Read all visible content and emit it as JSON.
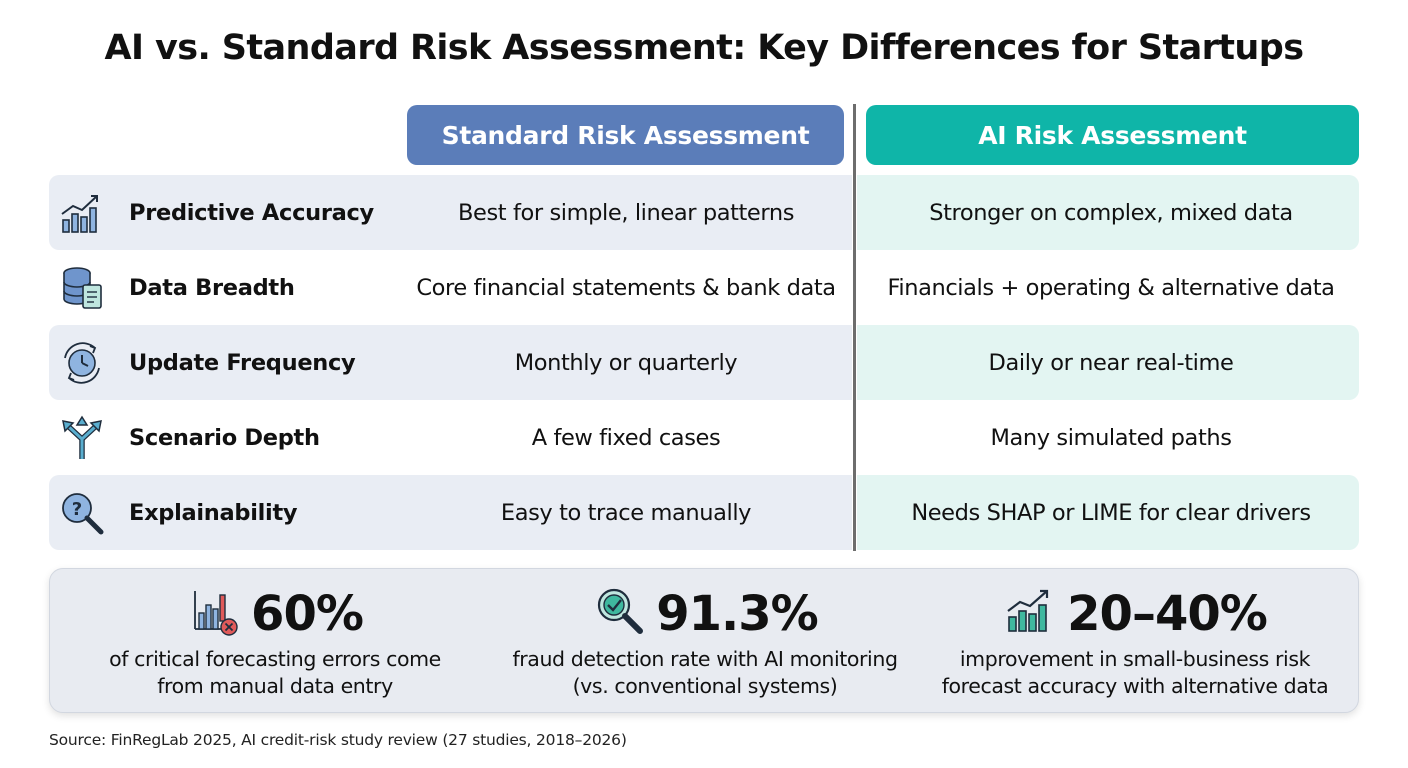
{
  "title": "AI vs. Standard Risk Assessment: Key Differences for Startups",
  "columns": {
    "standard": "Standard Risk Assessment",
    "ai": "AI Risk Assessment"
  },
  "colors": {
    "standard_header": "#5b7db9",
    "ai_header": "#0fb5a8",
    "row_shade_left": "#e9edf4",
    "row_shade_right": "#e3f5f2"
  },
  "rows": [
    {
      "icon": "bar-chart-growth-icon",
      "label": "Predictive Accuracy",
      "standard": "Best for simple, linear patterns",
      "ai": "Stronger on complex, mixed data"
    },
    {
      "icon": "database-document-icon",
      "label": "Data Breadth",
      "standard": "Core financial statements & bank data",
      "ai": "Financials + operating & alternative data"
    },
    {
      "icon": "clock-refresh-icon",
      "label": "Update Frequency",
      "standard": "Monthly or quarterly",
      "ai": "Daily or near real-time"
    },
    {
      "icon": "branching-arrows-icon",
      "label": "Scenario Depth",
      "standard": "A few fixed cases",
      "ai": "Many simulated paths"
    },
    {
      "icon": "question-magnifier-icon",
      "label": "Explainability",
      "standard": "Easy to trace manually",
      "ai": "Needs SHAP or LIME for clear drivers"
    }
  ],
  "stats": [
    {
      "icon": "bar-chart-error-icon",
      "value": "60%",
      "desc_line1": "of critical forecasting errors come",
      "desc_line2": "from manual data entry"
    },
    {
      "icon": "magnifier-check-icon",
      "value": "91.3%",
      "desc_line1": "fraud detection rate with AI monitoring",
      "desc_line2": "(vs. conventional systems)"
    },
    {
      "icon": "bar-chart-growth-icon",
      "value": "20–40%",
      "desc_line1": "improvement in small-business risk",
      "desc_line2": "forecast accuracy with alternative data"
    }
  ],
  "source": "Source: FinRegLab 2025, AI credit-risk study review (27 studies, 2018–2026)"
}
